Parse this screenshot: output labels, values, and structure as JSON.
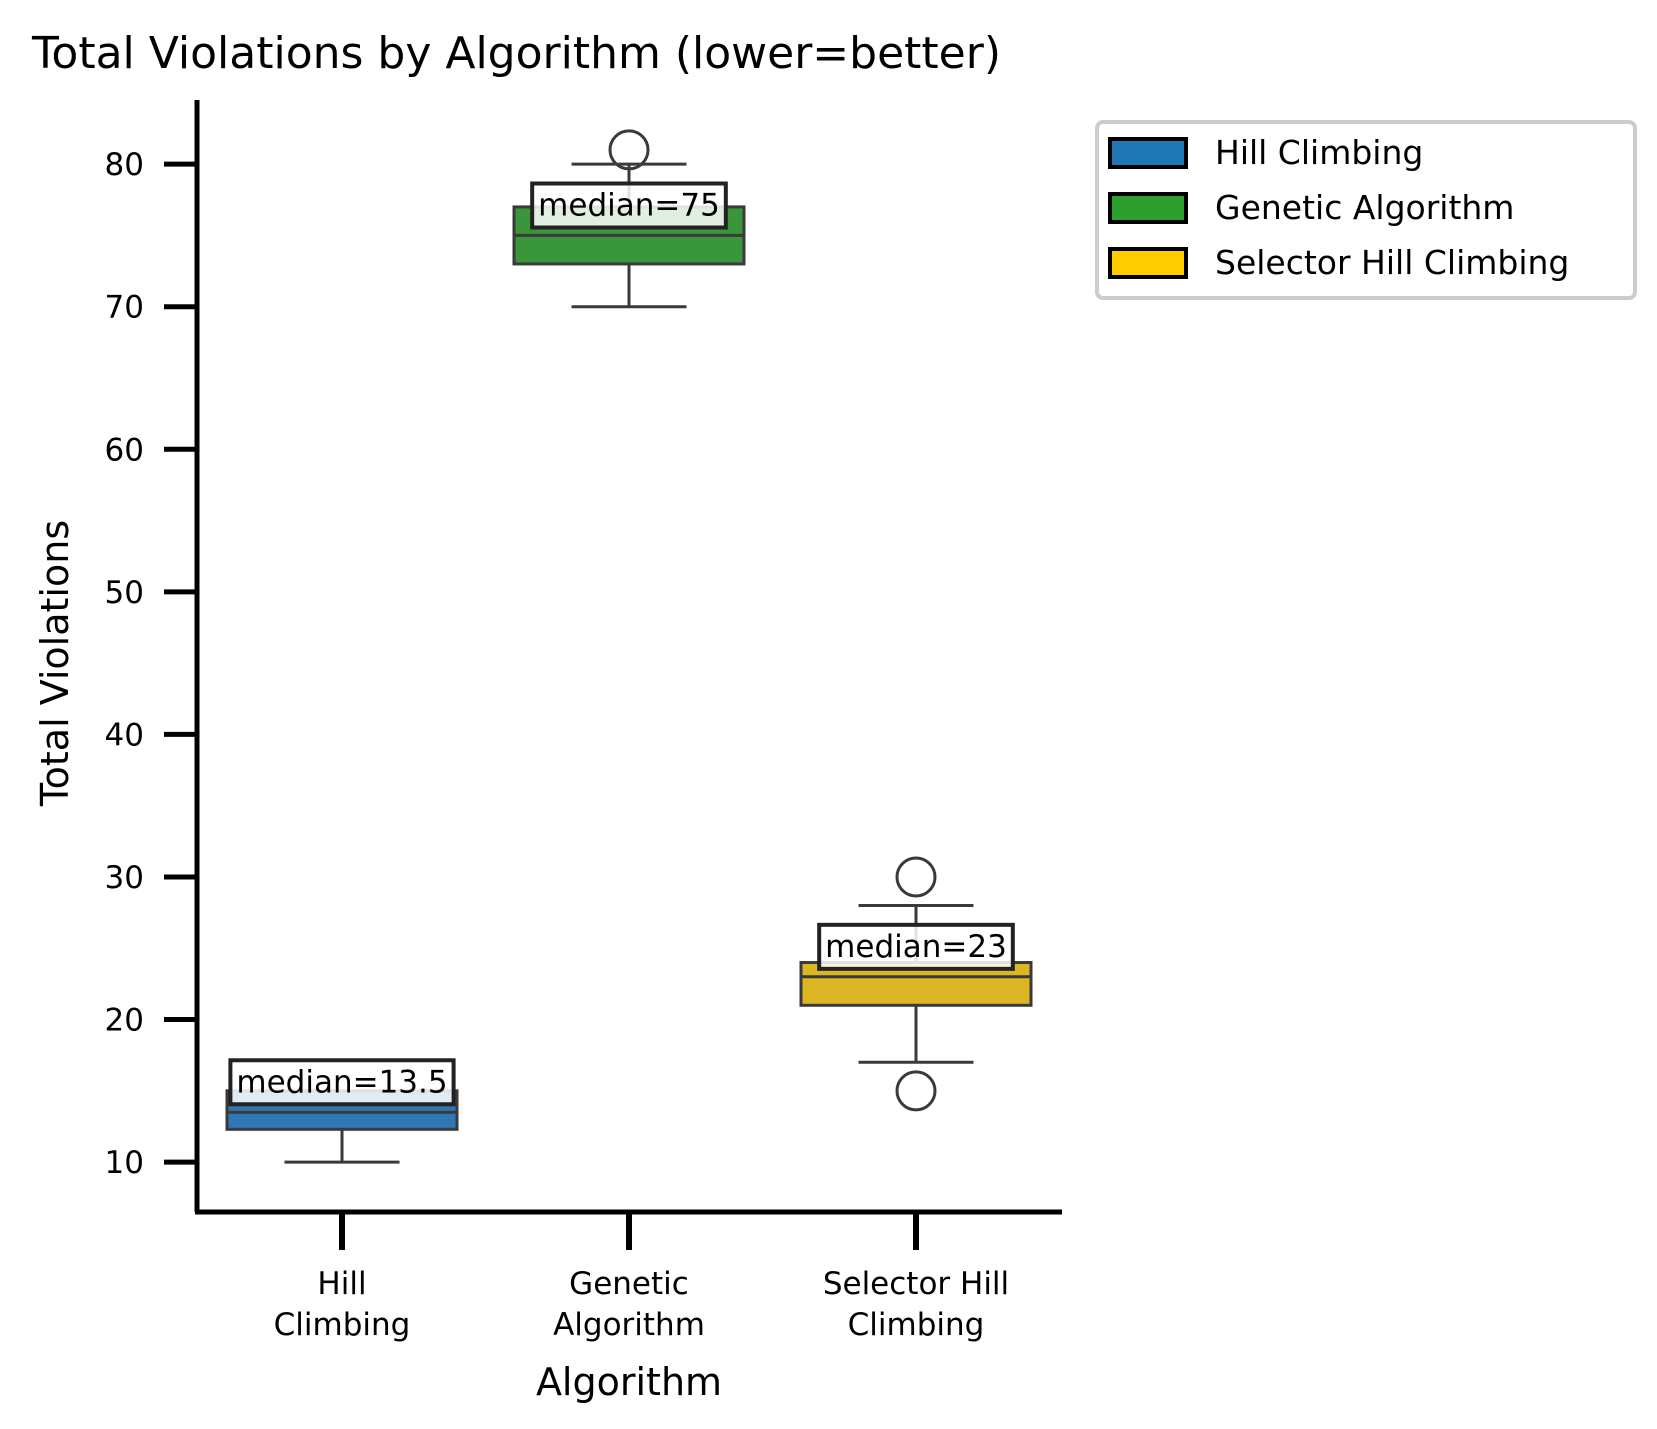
{
  "chart_data": {
    "type": "box",
    "title": "Total Violations by Algorithm (lower=better)",
    "xlabel": "Algorithm",
    "ylabel": "Total Violations",
    "ylim": [
      6.5,
      84.5
    ],
    "yticks": [
      10,
      20,
      30,
      40,
      50,
      60,
      70,
      80
    ],
    "grid": false,
    "legend_position": "outside-top-right",
    "categories": [
      {
        "label_lines": [
          "Hill",
          "Climbing"
        ]
      },
      {
        "label_lines": [
          "Genetic",
          "Algorithm"
        ]
      },
      {
        "label_lines": [
          "Selector Hill",
          "Climbing"
        ]
      }
    ],
    "series": [
      {
        "name": "Hill Climbing",
        "color": "#2f77b4",
        "legend_color": "#1f77b4",
        "whisker_low": 10,
        "q1": 12.3,
        "median": 13.5,
        "q3": 15,
        "whisker_high": 15,
        "outliers": [],
        "median_label": "median=13.5"
      },
      {
        "name": "Genetic Algorithm",
        "color": "#3a963a",
        "legend_color": "#2ca02c",
        "whisker_low": 70,
        "q1": 73,
        "median": 75,
        "q3": 77,
        "whisker_high": 80,
        "outliers": [
          81
        ],
        "median_label": "median=75"
      },
      {
        "name": "Selector Hill Climbing",
        "color": "#dcb723",
        "legend_color": "#ffcc00",
        "whisker_low": 17,
        "q1": 21,
        "median": 23,
        "q3": 24,
        "whisker_high": 28,
        "outliers": [
          30,
          15
        ],
        "median_label": "median=23"
      }
    ]
  }
}
